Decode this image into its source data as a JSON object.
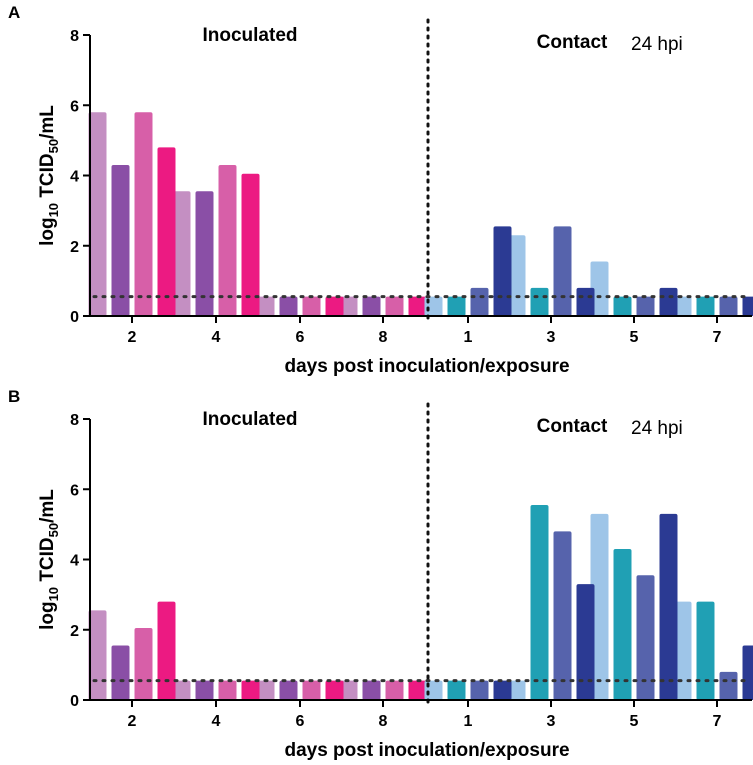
{
  "chart_data": [
    {
      "panel": "A",
      "type": "bar",
      "ylabel_main": "log",
      "ylabel_sub10": "10",
      "ylabel_mid": " TCID",
      "ylabel_sub50": "50",
      "ylabel_tail": "/mL",
      "xlabel": "days post inoculation/exposure",
      "ylim": [
        0,
        8
      ],
      "yticks": [
        "0",
        "2",
        "4",
        "6",
        "8"
      ],
      "detection_limit": 0.55,
      "inoculated": {
        "title": "Inoculated",
        "categories": [
          "2",
          "4",
          "6",
          "8"
        ],
        "colors": [
          "#c48fc2",
          "#8a4fa6",
          "#d75fa8",
          "#ec1a82"
        ],
        "series": [
          {
            "values": [
              5.8,
              3.55,
              0.55,
              0.55
            ]
          },
          {
            "values": [
              4.3,
              3.55,
              0.55,
              0.55
            ]
          },
          {
            "values": [
              5.8,
              4.3,
              0.55,
              0.55
            ]
          },
          {
            "values": [
              4.8,
              4.05,
              0.55,
              0.55
            ]
          }
        ]
      },
      "contact": {
        "title": "Contact",
        "subtitle": "24 hpi",
        "categories": [
          "1",
          "3",
          "5",
          "7"
        ],
        "colors": [
          "#9ec5e8",
          "#20a0b4",
          "#5663ac",
          "#2b3a93"
        ],
        "series": [
          {
            "values": [
              0.55,
              2.3,
              1.55,
              0.55
            ]
          },
          {
            "values": [
              0.55,
              0.8,
              0.55,
              0.55
            ]
          },
          {
            "values": [
              0.8,
              2.55,
              0.55,
              0.55
            ]
          },
          {
            "values": [
              2.55,
              0.8,
              0.8,
              0.55
            ]
          }
        ]
      }
    },
    {
      "panel": "B",
      "type": "bar",
      "ylabel_main": "log",
      "ylabel_sub10": "10",
      "ylabel_mid": " TCID",
      "ylabel_sub50": "50",
      "ylabel_tail": "/mL",
      "xlabel": "days post inoculation/exposure",
      "ylim": [
        0,
        8
      ],
      "yticks": [
        "0",
        "2",
        "4",
        "6",
        "8"
      ],
      "detection_limit": 0.55,
      "inoculated": {
        "title": "Inoculated",
        "categories": [
          "2",
          "4",
          "6",
          "8"
        ],
        "colors": [
          "#c48fc2",
          "#8a4fa6",
          "#d75fa8",
          "#ec1a82"
        ],
        "series": [
          {
            "values": [
              2.55,
              0.55,
              0.55,
              0.55
            ]
          },
          {
            "values": [
              1.55,
              0.55,
              0.55,
              0.55
            ]
          },
          {
            "values": [
              2.05,
              0.55,
              0.55,
              0.55
            ]
          },
          {
            "values": [
              2.8,
              0.55,
              0.55,
              0.55
            ]
          }
        ]
      },
      "contact": {
        "title": "Contact",
        "subtitle": "24 hpi",
        "categories": [
          "1",
          "3",
          "5",
          "7"
        ],
        "colors": [
          "#9ec5e8",
          "#20a0b4",
          "#5663ac",
          "#2b3a93"
        ],
        "series": [
          {
            "values": [
              0.55,
              0.55,
              5.3,
              2.8
            ]
          },
          {
            "values": [
              0.55,
              5.55,
              4.3,
              2.8
            ]
          },
          {
            "values": [
              0.55,
              4.8,
              3.55,
              0.8
            ]
          },
          {
            "values": [
              0.55,
              3.3,
              5.3,
              1.55
            ]
          }
        ]
      }
    }
  ]
}
